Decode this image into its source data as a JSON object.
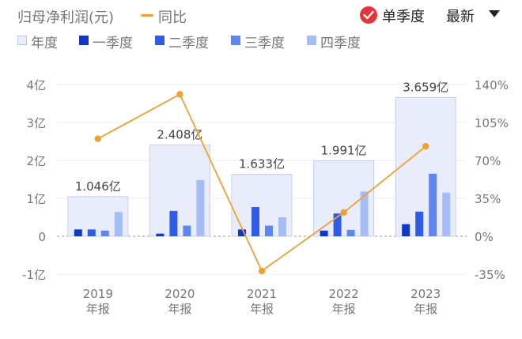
{
  "header": {
    "title": "归母净利润(元)",
    "yoy_legend": "同比",
    "mode_label": "单季度",
    "sort_label": "最新"
  },
  "legend": [
    {
      "name": "年度",
      "color": "#e8ecfb"
    },
    {
      "name": "一季度",
      "color": "#1038c8"
    },
    {
      "name": "二季度",
      "color": "#2f5be6"
    },
    {
      "name": "三季度",
      "color": "#5f85ee"
    },
    {
      "name": "四季度",
      "color": "#a6bcf7"
    }
  ],
  "chart_data": {
    "type": "bar",
    "categories": [
      "2019\n年报",
      "2020\n年报",
      "2021\n年报",
      "2022\n年报",
      "2023\n年报"
    ],
    "annual": [
      1.046,
      2.408,
      1.633,
      1.991,
      3.659
    ],
    "annual_labels": [
      "1.046亿",
      "2.408亿",
      "1.633亿",
      "1.991亿",
      "3.659亿"
    ],
    "series": [
      {
        "name": "一季度",
        "values": [
          0.18,
          0.07,
          0.18,
          0.15,
          0.32
        ]
      },
      {
        "name": "二季度",
        "values": [
          0.18,
          0.67,
          0.77,
          0.6,
          0.65
        ]
      },
      {
        "name": "三季度",
        "values": [
          0.15,
          0.28,
          0.28,
          0.17,
          1.65
        ]
      },
      {
        "name": "四季度",
        "values": [
          0.64,
          1.48,
          0.5,
          1.18,
          1.15
        ]
      }
    ],
    "yoy": {
      "name": "同比",
      "values": [
        90,
        131,
        -32,
        22,
        83
      ],
      "color": "#f0a030"
    },
    "ylim_left": [
      -1,
      4
    ],
    "yticks_left": [
      "-1亿",
      "0",
      "1亿",
      "2亿",
      "3亿",
      "4亿"
    ],
    "ylim_right": [
      -35,
      140
    ],
    "yticks_right": [
      "-35%",
      "0%",
      "35%",
      "70%",
      "105%",
      "140%"
    ]
  }
}
